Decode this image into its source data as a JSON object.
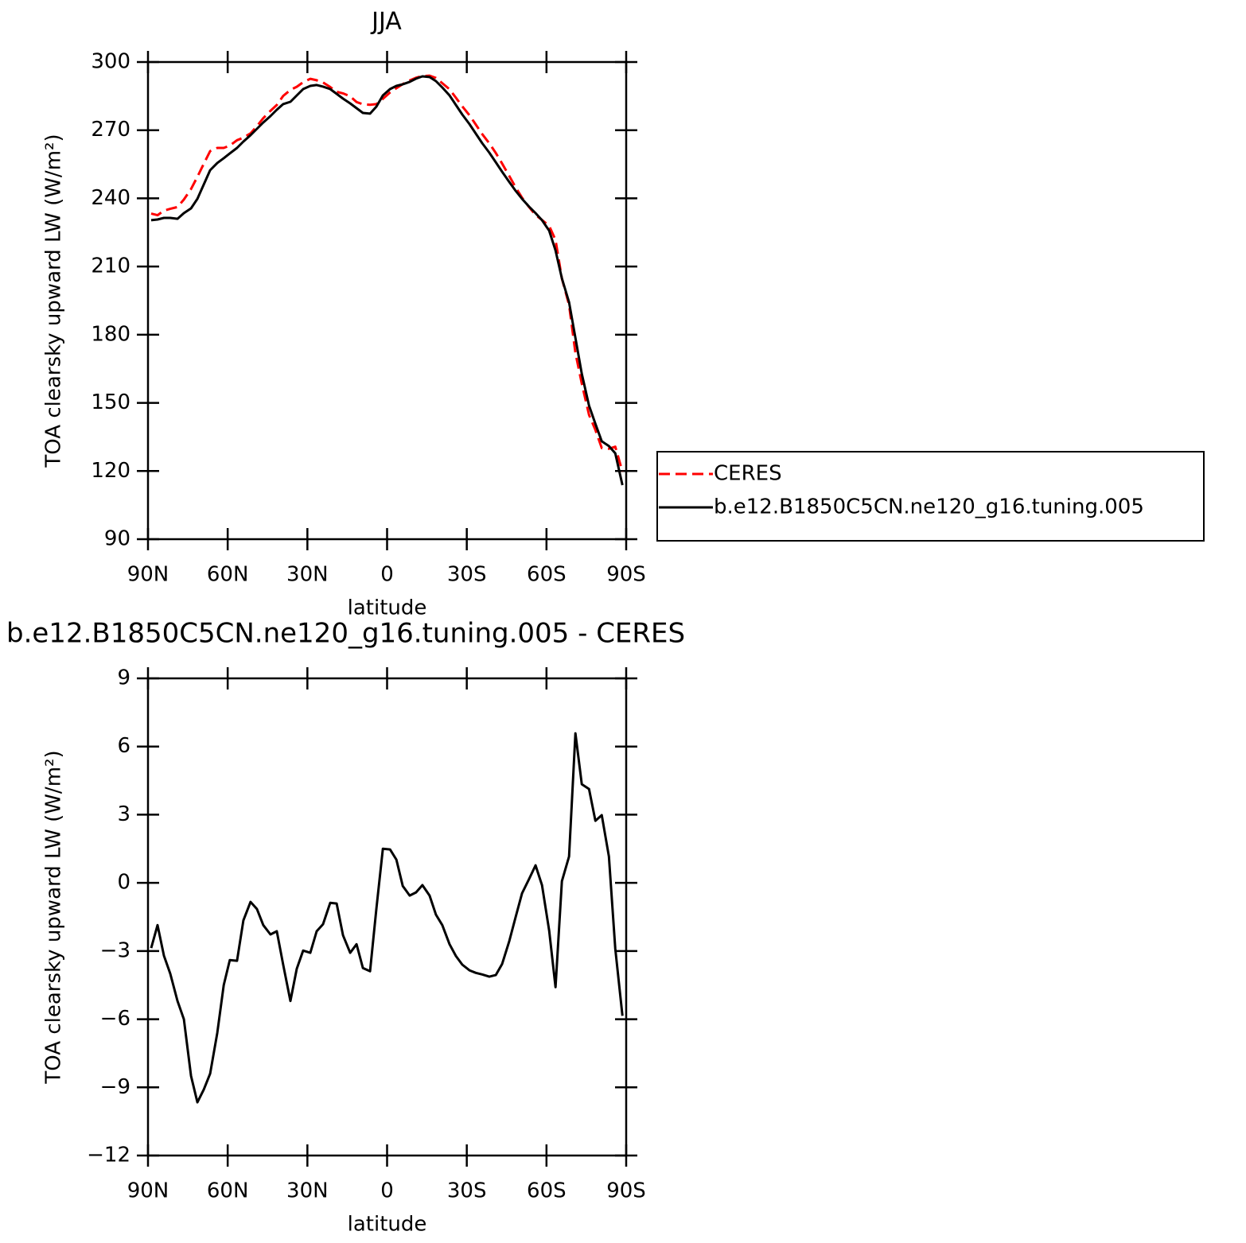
{
  "chart_data": [
    {
      "type": "line",
      "title": "JJA",
      "xlabel": "latitude",
      "ylabel": "TOA clearsky upward LW (W/m²)",
      "x": [
        88.8,
        86.4,
        84,
        81.6,
        78.9,
        76.5,
        73.8,
        71.4,
        69,
        66.6,
        63.9,
        61.5,
        59.2,
        56.5,
        54.1,
        51.4,
        49,
        46.6,
        43.9,
        41.5,
        39.1,
        36.4,
        34,
        31.6,
        28.9,
        26.5,
        24.1,
        21.4,
        19,
        16.6,
        13.9,
        11.5,
        9.1,
        6.4,
        4,
        1.6,
        -1.1,
        -3.5,
        -5.9,
        -8.5,
        -10.9,
        -13.3,
        -16,
        -18.4,
        -20.8,
        -23.5,
        -25.9,
        -28.3,
        -31,
        -33.4,
        -35.8,
        -38.5,
        -40.9,
        -43.3,
        -46,
        -48.4,
        -50.8,
        -53.5,
        -55.9,
        -58.3,
        -61,
        -63.4,
        -65.8,
        -68.5,
        -70.9,
        -73.3,
        -76,
        -78.4,
        -80.8,
        -83.5,
        -85.9,
        -88.6
      ],
      "series": [
        {
          "name": "CERES",
          "color": "#ff0000",
          "linestyle": "dashed",
          "values": [
            233.3,
            232.6,
            234.6,
            235.4,
            236.2,
            239.5,
            244.1,
            249.5,
            255.2,
            260.8,
            262.2,
            262.2,
            263.2,
            265.6,
            266.7,
            268.6,
            271.8,
            275.3,
            278.5,
            281.1,
            285.1,
            287.7,
            289.1,
            291.1,
            292.6,
            292,
            291,
            289,
            286.9,
            286.2,
            284.9,
            282.4,
            281.4,
            281.2,
            281.5,
            283.8,
            286.6,
            288.5,
            290.3,
            291.9,
            293.1,
            293.8,
            294,
            293,
            290.7,
            288,
            284.3,
            280.5,
            276.6,
            272.5,
            268.3,
            264.2,
            260,
            255.3,
            249.8,
            244.8,
            240.3,
            236.1,
            232.7,
            230.5,
            227.9,
            221.7,
            204.7,
            193.1,
            172,
            158.5,
            144.7,
            138.1,
            130.1,
            129.8,
            130.7,
            119.7
          ]
        },
        {
          "name": "b.e12.B1850C5CN.ne120_g16.tuning.005",
          "color": "#000000",
          "linestyle": "solid",
          "values": [
            230.4,
            230.7,
            231.4,
            231.4,
            231,
            233.5,
            235.6,
            239.8,
            246.1,
            252.4,
            255.6,
            257.7,
            259.8,
            262.2,
            265,
            267.8,
            270.6,
            273.4,
            276.2,
            279,
            281.5,
            282.5,
            285.3,
            288.1,
            289.5,
            289.9,
            289.2,
            288.1,
            286,
            283.9,
            281.8,
            279.7,
            277.6,
            277.3,
            280.4,
            285.3,
            288.1,
            289.5,
            290.2,
            291.3,
            292.7,
            293.7,
            293.4,
            291.6,
            288.8,
            285.3,
            281.1,
            276.9,
            272.7,
            268.5,
            264.3,
            260.1,
            255.9,
            251.7,
            247.2,
            243.3,
            239.8,
            236.3,
            233.5,
            230.4,
            225.8,
            217.1,
            204.8,
            194.3,
            178.6,
            162.8,
            148.8,
            140.8,
            133.1,
            131,
            127.8,
            113.8
          ]
        }
      ],
      "xlim": [
        90,
        -90
      ],
      "xticks": [
        {
          "value": 90,
          "label": "90N"
        },
        {
          "value": 60,
          "label": "60N"
        },
        {
          "value": 30,
          "label": "30N"
        },
        0,
        {
          "value": -30,
          "label": "30S"
        },
        {
          "value": -60,
          "label": "60S"
        },
        {
          "value": -90,
          "label": "90S"
        }
      ],
      "ylim": [
        90,
        300
      ],
      "yticks": [
        90,
        120,
        150,
        180,
        210,
        240,
        270,
        300
      ],
      "legend": "outside-right"
    },
    {
      "type": "line",
      "title": "b.e12.B1850C5CN.ne120_g16.tuning.005 - CERES",
      "xlabel": "latitude",
      "ylabel": "TOA clearsky upward LW (W/m²)",
      "x": [
        88.8,
        86.4,
        84,
        81.6,
        78.9,
        76.5,
        73.8,
        71.4,
        69,
        66.6,
        63.9,
        61.5,
        59.2,
        56.5,
        54.1,
        51.4,
        49,
        46.6,
        43.9,
        41.5,
        39.1,
        36.4,
        34,
        31.6,
        28.9,
        26.5,
        24.1,
        21.4,
        19,
        16.6,
        13.9,
        11.5,
        9.1,
        6.4,
        4,
        1.6,
        -1.1,
        -3.5,
        -5.9,
        -8.5,
        -10.9,
        -13.3,
        -16,
        -18.4,
        -20.8,
        -23.5,
        -25.9,
        -28.3,
        -31,
        -33.4,
        -35.8,
        -38.5,
        -40.9,
        -43.3,
        -46,
        -48.4,
        -50.8,
        -53.5,
        -55.9,
        -58.3,
        -61,
        -63.4,
        -65.8,
        -68.5,
        -70.9,
        -73.3,
        -76,
        -78.4,
        -80.8,
        -83.5,
        -85.9,
        -88.6
      ],
      "color": "#000000",
      "values": [
        -2.87,
        -1.86,
        -3.2,
        -4.0,
        -5.2,
        -6.0,
        -8.5,
        -9.66,
        -9.1,
        -8.4,
        -6.6,
        -4.5,
        -3.4,
        -3.43,
        -1.65,
        -0.84,
        -1.15,
        -1.86,
        -2.27,
        -2.13,
        -3.6,
        -5.2,
        -3.78,
        -2.98,
        -3.08,
        -2.13,
        -1.82,
        -0.88,
        -0.91,
        -2.31,
        -3.08,
        -2.7,
        -3.75,
        -3.89,
        -1.12,
        1.5,
        1.47,
        1.02,
        -0.14,
        -0.56,
        -0.42,
        -0.1,
        -0.56,
        -1.4,
        -1.86,
        -2.7,
        -3.22,
        -3.6,
        -3.85,
        -3.96,
        -4.03,
        -4.13,
        -4.06,
        -3.57,
        -2.56,
        -1.5,
        -0.46,
        0.18,
        0.77,
        -0.1,
        -2.1,
        -4.59,
        0.07,
        1.16,
        6.58,
        4.34,
        4.13,
        2.73,
        2.98,
        1.16,
        -2.9,
        -5.85
      ],
      "xlim": [
        90,
        -90
      ],
      "xticks": [
        {
          "value": 90,
          "label": "90N"
        },
        {
          "value": 60,
          "label": "60N"
        },
        {
          "value": 30,
          "label": "30N"
        },
        0,
        {
          "value": -30,
          "label": "30S"
        },
        {
          "value": -60,
          "label": "60S"
        },
        {
          "value": -90,
          "label": "90S"
        }
      ],
      "ylim": [
        -12,
        9
      ],
      "yticks": [
        {
          "value": -12,
          "label": "−12"
        },
        {
          "value": -9,
          "label": "−9"
        },
        {
          "value": -6,
          "label": "−6"
        },
        {
          "value": -3,
          "label": "−3"
        },
        0,
        3,
        6,
        9
      ]
    }
  ]
}
